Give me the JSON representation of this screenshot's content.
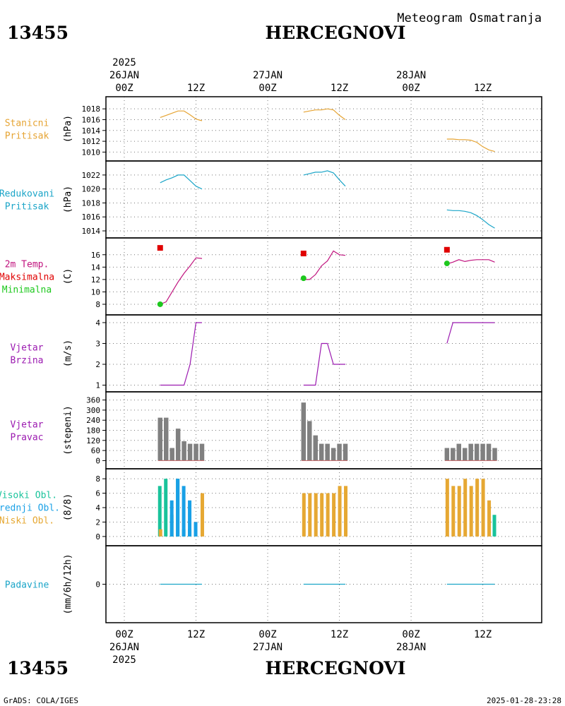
{
  "header": {
    "station_id": "13455",
    "station_name": "HERCEGNOVI",
    "subtitle": "Meteogram Osmatranja"
  },
  "footer": {
    "station_id": "13455",
    "station_name": "HERCEGNOVI",
    "credit": "GrADS: COLA/IGES",
    "timestamp": "2025-01-28-23:28"
  },
  "time_axis": {
    "top_labels": [
      {
        "t": 0,
        "lines": [
          "2025",
          "26JAN",
          "00Z"
        ]
      },
      {
        "t": 12,
        "lines": [
          "12Z"
        ]
      },
      {
        "t": 24,
        "lines": [
          "27JAN",
          "00Z"
        ]
      },
      {
        "t": 36,
        "lines": [
          "12Z"
        ]
      },
      {
        "t": 48,
        "lines": [
          "28JAN",
          "00Z"
        ]
      },
      {
        "t": 60,
        "lines": [
          "12Z"
        ]
      }
    ],
    "bottom_labels": [
      {
        "t": 0,
        "lines": [
          "00Z",
          "26JAN",
          "2025"
        ]
      },
      {
        "t": 12,
        "lines": [
          "12Z"
        ]
      },
      {
        "t": 24,
        "lines": [
          "00Z",
          "27JAN"
        ]
      },
      {
        "t": 36,
        "lines": [
          "12Z"
        ]
      },
      {
        "t": 48,
        "lines": [
          "00Z",
          "28JAN"
        ]
      },
      {
        "t": 60,
        "lines": [
          "12Z"
        ]
      }
    ]
  },
  "colors": {
    "pressure_station": "#e6a433",
    "pressure_reduced": "#1ba5c8",
    "temp_line": "#c0137e",
    "tmax": "#e00000",
    "tmin": "#1ec81e",
    "wind": "#9b1ab0",
    "direction_bar": "#808080",
    "cloud_high": "#19c39b",
    "cloud_mid": "#19a0e6",
    "cloud_low": "#e6a833",
    "precip": "#1ba5c8",
    "grid": "#777777"
  },
  "chart_data": [
    {
      "type": "line",
      "label_lines": [
        "Stanicni",
        "Pritisak"
      ],
      "unit": "(hPa)",
      "ylim": [
        1009.4,
        1019.2
      ],
      "yticks": [
        1010,
        1012,
        1014,
        1016,
        1018
      ],
      "series": [
        {
          "color_key": "pressure_station",
          "segments": [
            [
              [
                6,
                1016.4
              ],
              [
                7,
                1016.8
              ],
              [
                8,
                1017.2
              ],
              [
                9,
                1017.6
              ],
              [
                10,
                1017.6
              ],
              [
                11,
                1016.9
              ],
              [
                12,
                1016.1
              ],
              [
                13,
                1015.8
              ]
            ],
            [
              [
                30,
                1017.4
              ],
              [
                31,
                1017.6
              ],
              [
                32,
                1017.8
              ],
              [
                33,
                1017.8
              ],
              [
                34,
                1018.0
              ],
              [
                35,
                1017.8
              ],
              [
                36,
                1016.8
              ],
              [
                37,
                1016.0
              ]
            ],
            [
              [
                54,
                1012.4
              ],
              [
                55,
                1012.4
              ],
              [
                56,
                1012.3
              ],
              [
                57,
                1012.3
              ],
              [
                58,
                1012.2
              ],
              [
                59,
                1011.8
              ],
              [
                60,
                1011.0
              ],
              [
                61,
                1010.4
              ],
              [
                62,
                1010.1
              ]
            ]
          ]
        }
      ]
    },
    {
      "type": "line",
      "label_lines": [
        "Redukovani",
        "Pritisak"
      ],
      "unit": "(hPa)",
      "ylim": [
        1013.8,
        1023.2
      ],
      "yticks": [
        1014,
        1016,
        1018,
        1020,
        1022
      ],
      "series": [
        {
          "color_key": "pressure_reduced",
          "segments": [
            [
              [
                6,
                1020.9
              ],
              [
                7,
                1021.3
              ],
              [
                8,
                1021.6
              ],
              [
                9,
                1022.0
              ],
              [
                10,
                1022.0
              ],
              [
                11,
                1021.2
              ],
              [
                12,
                1020.4
              ],
              [
                13,
                1020.0
              ]
            ],
            [
              [
                30,
                1022.0
              ],
              [
                31,
                1022.2
              ],
              [
                32,
                1022.4
              ],
              [
                33,
                1022.4
              ],
              [
                34,
                1022.6
              ],
              [
                35,
                1022.3
              ],
              [
                36,
                1021.3
              ],
              [
                37,
                1020.4
              ]
            ],
            [
              [
                54,
                1017.0
              ],
              [
                55,
                1016.9
              ],
              [
                56,
                1016.9
              ],
              [
                57,
                1016.8
              ],
              [
                58,
                1016.6
              ],
              [
                59,
                1016.2
              ],
              [
                60,
                1015.6
              ],
              [
                61,
                1014.9
              ],
              [
                62,
                1014.4
              ]
            ]
          ]
        }
      ]
    },
    {
      "type": "line",
      "label_lines": [
        "2m Temp.",
        "Maksimalna",
        "Minimalna"
      ],
      "label_color_keys": [
        "temp_line",
        "tmax",
        "tmin"
      ],
      "unit": "(C)",
      "ylim": [
        7.2,
        17.8
      ],
      "yticks": [
        8,
        10,
        12,
        14,
        16
      ],
      "series": [
        {
          "color_key": "temp_line",
          "segments": [
            [
              [
                6,
                8.0
              ],
              [
                7,
                8.4
              ],
              [
                8,
                10.0
              ],
              [
                9,
                11.6
              ],
              [
                10,
                13.0
              ],
              [
                11,
                14.2
              ],
              [
                12,
                15.5
              ],
              [
                13,
                15.4
              ]
            ],
            [
              [
                30,
                12.0
              ],
              [
                31,
                12.0
              ],
              [
                32,
                12.8
              ],
              [
                33,
                14.2
              ],
              [
                34,
                15.0
              ],
              [
                35,
                16.6
              ],
              [
                36,
                16.0
              ],
              [
                37,
                15.9
              ]
            ],
            [
              [
                54,
                14.5
              ],
              [
                55,
                14.8
              ],
              [
                56,
                15.2
              ],
              [
                57,
                14.9
              ],
              [
                58,
                15.1
              ],
              [
                59,
                15.2
              ],
              [
                60,
                15.2
              ],
              [
                61,
                15.2
              ],
              [
                62,
                14.8
              ]
            ]
          ]
        }
      ],
      "markers": [
        {
          "shape": "square",
          "color_key": "tmax",
          "points": [
            [
              6,
              17.1
            ],
            [
              30,
              16.2
            ],
            [
              54,
              16.8
            ]
          ]
        },
        {
          "shape": "circle",
          "color_key": "tmin",
          "points": [
            [
              6,
              8.0
            ],
            [
              30,
              12.2
            ],
            [
              54,
              14.6
            ]
          ]
        }
      ]
    },
    {
      "type": "line",
      "label_lines": [
        "Vjetar",
        "Brzina"
      ],
      "unit": "(m/s)",
      "ylim": [
        0.95,
        4.1
      ],
      "yticks": [
        1,
        2,
        3,
        4
      ],
      "series": [
        {
          "color_key": "wind",
          "segments": [
            [
              [
                6,
                1
              ],
              [
                7,
                1
              ],
              [
                8,
                1
              ],
              [
                9,
                1
              ],
              [
                10,
                1
              ],
              [
                11,
                2
              ],
              [
                12,
                4
              ],
              [
                13,
                4
              ]
            ],
            [
              [
                30,
                1
              ],
              [
                31,
                1
              ],
              [
                32,
                1
              ],
              [
                33,
                3
              ],
              [
                34,
                3
              ],
              [
                35,
                2
              ],
              [
                36,
                2
              ],
              [
                37,
                2
              ]
            ],
            [
              [
                54,
                3
              ],
              [
                55,
                4
              ],
              [
                56,
                4
              ],
              [
                57,
                4
              ],
              [
                58,
                4
              ],
              [
                59,
                4
              ],
              [
                60,
                4
              ],
              [
                61,
                4
              ],
              [
                62,
                4
              ]
            ]
          ]
        }
      ]
    },
    {
      "type": "bar",
      "label_lines": [
        "Vjetar",
        "Pravac"
      ],
      "unit": "(stepeni)",
      "ylim": [
        -15,
        375
      ],
      "yticks": [
        0,
        60,
        120,
        180,
        240,
        300,
        360
      ],
      "series": [
        {
          "color_key": "direction_bar",
          "x": [
            6,
            7,
            8,
            9,
            10,
            11,
            12,
            13,
            30,
            31,
            32,
            33,
            34,
            35,
            36,
            37,
            54,
            55,
            56,
            57,
            58,
            59,
            60,
            61,
            62
          ],
          "values": [
            255,
            255,
            75,
            190,
            115,
            100,
            100,
            100,
            345,
            235,
            150,
            100,
            100,
            75,
            100,
            100,
            75,
            75,
            100,
            75,
            100,
            100,
            100,
            100,
            75
          ]
        }
      ]
    },
    {
      "type": "bar",
      "label_lines": [
        "Visoki Obl.",
        "Srednji Obl.",
        "Niski Obl."
      ],
      "label_color_keys": [
        "cloud_high",
        "cloud_mid",
        "cloud_low"
      ],
      "unit": "(8/8)",
      "ylim": [
        -0.5,
        8.6
      ],
      "yticks": [
        0,
        2,
        4,
        6,
        8
      ],
      "series": [
        {
          "name": "Visoki Obl.",
          "color_key": "cloud_high",
          "x": [
            6,
            7,
            8,
            9,
            10,
            11,
            12,
            30,
            31,
            32,
            33,
            34,
            35,
            36,
            37,
            54,
            55,
            56,
            57,
            58,
            59,
            60,
            61,
            62
          ],
          "values": [
            7,
            8,
            3,
            8,
            1,
            1,
            1,
            0,
            0,
            0,
            0,
            0,
            0,
            0,
            0,
            0,
            0,
            0,
            0,
            0,
            0,
            0,
            0,
            3
          ]
        },
        {
          "name": "Srednji Obl.",
          "color_key": "cloud_mid",
          "x": [
            6,
            7,
            8,
            9,
            10,
            11,
            12,
            30,
            31,
            32,
            33,
            34,
            35,
            36,
            37,
            54,
            55,
            56,
            57,
            58,
            59,
            60,
            61,
            62
          ],
          "values": [
            0,
            0,
            5,
            8,
            7,
            5,
            2,
            0,
            0,
            0,
            0,
            0,
            0,
            0,
            0,
            0,
            0,
            0,
            0,
            0,
            0,
            0,
            0,
            0
          ]
        },
        {
          "name": "Niski Obl.",
          "color_key": "cloud_low",
          "x": [
            6,
            7,
            8,
            9,
            10,
            11,
            12,
            13,
            30,
            31,
            32,
            33,
            34,
            35,
            36,
            37,
            54,
            55,
            56,
            57,
            58,
            59,
            60,
            61,
            62
          ],
          "values": [
            1,
            0,
            0,
            0,
            0,
            0,
            0,
            6,
            6,
            6,
            6,
            6,
            6,
            6,
            7,
            7,
            8,
            7,
            7,
            8,
            7,
            8,
            8,
            5,
            0
          ]
        }
      ]
    },
    {
      "type": "line",
      "label_lines": [
        "Padavine"
      ],
      "unit": "(mm/6h/12h)",
      "ylim": [
        -1,
        1
      ],
      "yticks": [
        0
      ],
      "series": [
        {
          "color_key": "precip",
          "segments": [
            [
              [
                6,
                0
              ],
              [
                13,
                0
              ]
            ],
            [
              [
                30,
                0
              ],
              [
                37,
                0
              ]
            ],
            [
              [
                54,
                0
              ],
              [
                62,
                0
              ]
            ]
          ]
        }
      ]
    }
  ]
}
